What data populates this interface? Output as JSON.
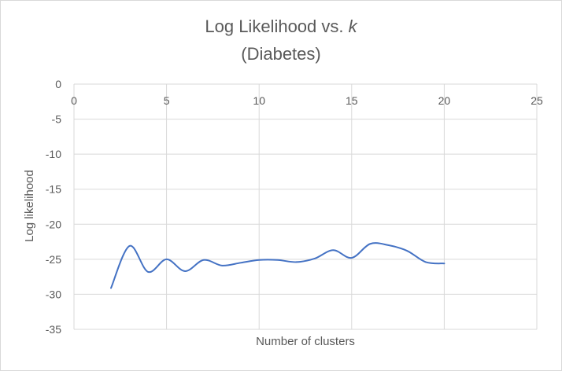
{
  "chart_data": {
    "type": "line",
    "title": "Log Likelihood vs. ",
    "title_italic": "k",
    "subtitle": "(Diabetes)",
    "xlabel": "Number of clusters",
    "ylabel": "Log likelihood",
    "xlim": [
      0,
      25
    ],
    "ylim": [
      -35,
      0
    ],
    "x_ticks": [
      "0",
      "5",
      "10",
      "15",
      "20",
      "25"
    ],
    "y_ticks": [
      "0",
      "-5",
      "-10",
      "-15",
      "-20",
      "-25",
      "-30",
      "-35"
    ],
    "x_tick_values": [
      0,
      5,
      10,
      15,
      20,
      25
    ],
    "y_tick_values": [
      0,
      -5,
      -10,
      -15,
      -20,
      -25,
      -30,
      -35
    ],
    "grid": true,
    "x_axis_position": "top",
    "smooth": true,
    "series": [
      {
        "color": "#4472c4",
        "x": [
          2,
          3,
          4,
          5,
          6,
          7,
          8,
          9,
          10,
          11,
          12,
          13,
          14,
          15,
          16,
          17,
          18,
          19,
          20
        ],
        "values": [
          -29.1,
          -23.1,
          -26.8,
          -25.0,
          -26.7,
          -25.1,
          -25.9,
          -25.5,
          -25.1,
          -25.1,
          -25.4,
          -24.9,
          -23.7,
          -24.8,
          -22.8,
          -23.0,
          -23.8,
          -25.4,
          -25.6
        ]
      }
    ]
  }
}
